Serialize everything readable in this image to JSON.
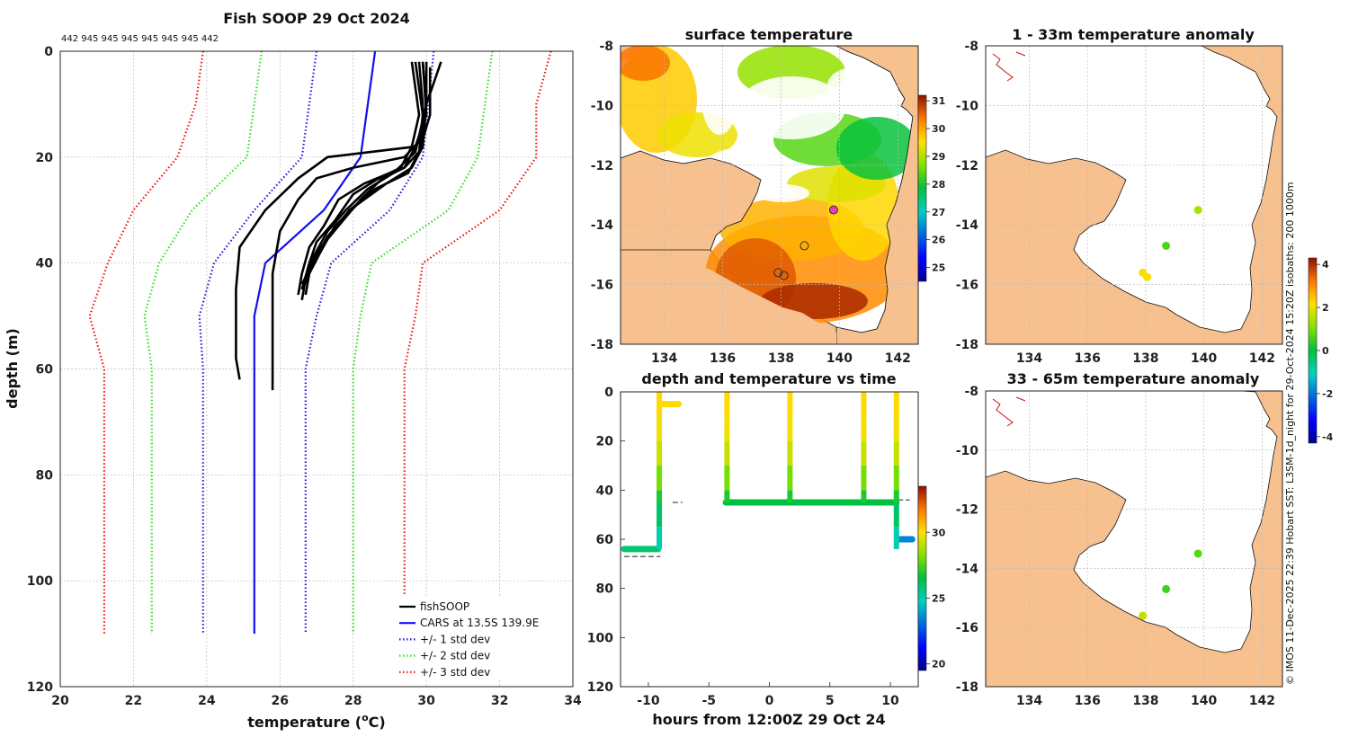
{
  "profile_panel": {
    "title": "Fish SOOP 29 Oct 2024",
    "counts_label": "442 945 945 945 945 945 945 442",
    "xlabel_main": "temperature (",
    "xlabel_sup": "o",
    "xlabel_tail": "C)",
    "ylabel": "depth (m)"
  },
  "map_panels": {
    "sst_title": "surface temperature",
    "anom1_title": "1 - 33m temperature anomaly",
    "anom2_title": "33 - 65m temperature anomaly",
    "lon_ticks": [
      "134",
      "136",
      "138",
      "140",
      "142"
    ],
    "lat_ticks": [
      "-8",
      "-10",
      "-12",
      "-14",
      "-16",
      "-18"
    ],
    "sst_colorbar_ticks": [
      "31",
      "30",
      "29",
      "28",
      "27",
      "26",
      "25"
    ],
    "anom_colorbar_ticks": [
      "4",
      "2",
      "0",
      "-2",
      "-4"
    ]
  },
  "time_panel": {
    "title": "depth and temperature vs time",
    "xlabel": "hours from 12:00Z 29 Oct 24",
    "colorbar_ticks": [
      "30",
      "25",
      "20"
    ]
  },
  "credit": "© IMOS 11-Dec-2025 22:39 Hobart SST: L3SM-1d_night for 29-Oct-2024 15:20Z isobaths: 200  1000m",
  "colors": {
    "land": "#f7c08f",
    "fishsoop": "#000000",
    "cars": "#1010ee",
    "std1": "#1a1ae0",
    "std2": "#33dd22",
    "std3": "#ee1111"
  },
  "chart_data": [
    {
      "type": "line",
      "title": "Fish SOOP 29 Oct 2024",
      "xlabel": "temperature (oC)",
      "ylabel": "depth (m)",
      "xlim": [
        20,
        34
      ],
      "ylim": [
        120,
        0
      ],
      "x_ticks": [
        "20",
        "22",
        "24",
        "26",
        "28",
        "30",
        "32",
        "34"
      ],
      "y_ticks": [
        "0",
        "20",
        "40",
        "60",
        "80",
        "100",
        "120"
      ],
      "legend_position": "bottom-right",
      "legend": [
        "fishSOOP",
        "CARS at 13.5S 139.9E",
        "+/- 1 std dev",
        "+/- 2 std dev",
        "+/- 3 std dev"
      ],
      "series": [
        {
          "name": "CARS mean",
          "color": "cars",
          "style": "solid",
          "points": [
            [
              28.6,
              0
            ],
            [
              28.2,
              20
            ],
            [
              27.2,
              30
            ],
            [
              25.6,
              40
            ],
            [
              25.3,
              50
            ],
            [
              25.3,
              60
            ],
            [
              25.3,
              110
            ]
          ]
        },
        {
          "name": "-1 std",
          "color": "std1",
          "style": "dotted",
          "points": [
            [
              27.0,
              0
            ],
            [
              26.6,
              20
            ],
            [
              25.3,
              30
            ],
            [
              24.2,
              40
            ],
            [
              23.8,
              50
            ],
            [
              23.9,
              60
            ],
            [
              23.9,
              110
            ]
          ]
        },
        {
          "name": "+1 std",
          "color": "std1",
          "style": "dotted",
          "points": [
            [
              30.2,
              0
            ],
            [
              29.9,
              20
            ],
            [
              29.0,
              30
            ],
            [
              27.4,
              40
            ],
            [
              27.0,
              50
            ],
            [
              26.7,
              60
            ],
            [
              26.7,
              110
            ]
          ]
        },
        {
          "name": "-2 std",
          "color": "std2",
          "style": "dotted",
          "points": [
            [
              25.5,
              0
            ],
            [
              25.1,
              20
            ],
            [
              23.6,
              30
            ],
            [
              22.7,
              40
            ],
            [
              22.3,
              50
            ],
            [
              22.5,
              60
            ],
            [
              22.5,
              110
            ]
          ]
        },
        {
          "name": "+2 std",
          "color": "std2",
          "style": "dotted",
          "points": [
            [
              31.8,
              0
            ],
            [
              31.4,
              20
            ],
            [
              30.6,
              30
            ],
            [
              28.5,
              40
            ],
            [
              28.2,
              50
            ],
            [
              28.0,
              60
            ],
            [
              28.0,
              110
            ]
          ]
        },
        {
          "name": "-3 std",
          "color": "std3",
          "style": "dotted",
          "points": [
            [
              23.9,
              0
            ],
            [
              23.7,
              10
            ],
            [
              23.2,
              20
            ],
            [
              22.0,
              30
            ],
            [
              21.3,
              40
            ],
            [
              20.8,
              50
            ],
            [
              21.2,
              60
            ],
            [
              21.2,
              110
            ]
          ]
        },
        {
          "name": "+3 std",
          "color": "std3",
          "style": "dotted",
          "points": [
            [
              33.4,
              0
            ],
            [
              33.0,
              10
            ],
            [
              33.0,
              20
            ],
            [
              32.0,
              30
            ],
            [
              29.9,
              40
            ],
            [
              29.7,
              50
            ],
            [
              29.4,
              60
            ],
            [
              29.4,
              110
            ]
          ]
        },
        {
          "name": "fishSOOP cast 1",
          "color": "fishsoop",
          "style": "solid",
          "points": [
            [
              29.8,
              2
            ],
            [
              29.9,
              10
            ],
            [
              29.9,
              16
            ],
            [
              29.7,
              18
            ],
            [
              27.3,
              20
            ],
            [
              26.5,
              24
            ],
            [
              25.6,
              30
            ],
            [
              24.9,
              37
            ],
            [
              24.8,
              45
            ],
            [
              24.8,
              58
            ],
            [
              24.9,
              62
            ]
          ]
        },
        {
          "name": "fishSOOP cast 2",
          "color": "fishsoop",
          "style": "solid",
          "points": [
            [
              30.0,
              2
            ],
            [
              30.0,
              10
            ],
            [
              29.8,
              17
            ],
            [
              29.4,
              20
            ],
            [
              28.0,
              22
            ],
            [
              27.0,
              24
            ],
            [
              26.5,
              28
            ],
            [
              26.0,
              34
            ],
            [
              25.8,
              42
            ],
            [
              25.8,
              55
            ],
            [
              25.8,
              64
            ]
          ]
        },
        {
          "name": "fishSOOP cast 3",
          "color": "fishsoop",
          "style": "solid",
          "points": [
            [
              29.9,
              2
            ],
            [
              30.0,
              12
            ],
            [
              29.7,
              18
            ],
            [
              29.4,
              22
            ],
            [
              29.0,
              23
            ],
            [
              28.3,
              25
            ],
            [
              27.6,
              28
            ],
            [
              27.2,
              33
            ],
            [
              26.8,
              37
            ],
            [
              26.6,
              42
            ],
            [
              26.5,
              46
            ]
          ]
        },
        {
          "name": "fishSOOP cast 4",
          "color": "fishsoop",
          "style": "solid",
          "points": [
            [
              29.6,
              2
            ],
            [
              29.8,
              12
            ],
            [
              29.6,
              18
            ],
            [
              29.3,
              22
            ],
            [
              28.7,
              24
            ],
            [
              28.0,
              27
            ],
            [
              27.5,
              32
            ],
            [
              27.0,
              36
            ],
            [
              26.8,
              40
            ],
            [
              26.6,
              45
            ]
          ]
        },
        {
          "name": "fishSOOP cast 5",
          "color": "fishsoop",
          "style": "solid",
          "points": [
            [
              30.4,
              2
            ],
            [
              30.0,
              10
            ],
            [
              29.9,
              18
            ],
            [
              29.6,
              22
            ],
            [
              28.9,
              25
            ],
            [
              28.1,
              29
            ],
            [
              27.5,
              33
            ],
            [
              27.1,
              38
            ],
            [
              26.8,
              42
            ],
            [
              26.7,
              46
            ]
          ]
        },
        {
          "name": "fishSOOP cast 6",
          "color": "fishsoop",
          "style": "solid",
          "points": [
            [
              29.7,
              2
            ],
            [
              29.9,
              12
            ],
            [
              29.8,
              19
            ],
            [
              29.5,
              23
            ],
            [
              28.6,
              26
            ],
            [
              27.9,
              30
            ],
            [
              27.3,
              35
            ],
            [
              26.9,
              40
            ],
            [
              26.6,
              44
            ]
          ]
        },
        {
          "name": "fishSOOP cast 7",
          "color": "fishsoop",
          "style": "solid",
          "points": [
            [
              30.1,
              3
            ],
            [
              30.1,
              12
            ],
            [
              29.8,
              19
            ],
            [
              29.4,
              22
            ],
            [
              28.8,
              24
            ],
            [
              28.2,
              28
            ],
            [
              27.6,
              33
            ],
            [
              27.0,
              38
            ],
            [
              26.7,
              43
            ],
            [
              26.6,
              47
            ]
          ]
        },
        {
          "name": "fishSOOP cast 8",
          "color": "fishsoop",
          "style": "solid",
          "points": [
            [
              29.9,
              2
            ],
            [
              30.0,
              10
            ],
            [
              29.7,
              19
            ],
            [
              29.1,
              23
            ],
            [
              28.4,
              26
            ],
            [
              27.8,
              30
            ],
            [
              27.3,
              34
            ],
            [
              26.9,
              39
            ],
            [
              26.7,
              44
            ]
          ]
        }
      ]
    },
    {
      "type": "heatmap",
      "title": "surface temperature",
      "xlim": [
        132.5,
        142.7
      ],
      "ylim": [
        -18,
        -8
      ],
      "colorbar_range": [
        24.5,
        31.2
      ],
      "fishsoop_positions": [
        [
          139.8,
          -13.5
        ],
        [
          138.8,
          -14.7
        ],
        [
          137.9,
          -15.6
        ],
        [
          138.1,
          -15.7
        ]
      ]
    },
    {
      "type": "scatter",
      "title": "depth and temperature vs time",
      "xlabel": "hours from 12:00Z 29 Oct 24",
      "xlim": [
        -12.3,
        12.3
      ],
      "ylim": [
        120,
        0
      ],
      "x_ticks": [
        "-10",
        "-5",
        "0",
        "5",
        "10"
      ],
      "y_ticks": [
        "0",
        "20",
        "40",
        "60",
        "80",
        "100",
        "120"
      ],
      "colorbar_range": [
        19.5,
        33.5
      ],
      "segments": [
        {
          "t0": -12.0,
          "t1": -9.2,
          "depth": 64,
          "temp": 25.8
        },
        {
          "t0": -9.2,
          "t1": -9.0,
          "depth_from": 64,
          "depth_to": 0,
          "temp_top": 29.9,
          "temp_bottom": 25.8
        },
        {
          "t0": -8.8,
          "t1": -7.5,
          "depth": 5,
          "temp": 30.1
        },
        {
          "t0": -3.6,
          "t1": 10.5,
          "depth": 45,
          "temp": 26.5
        },
        {
          "t0": 10.6,
          "t1": 11.8,
          "depth": 60,
          "temp": 23.5
        }
      ],
      "profiles_at_hours": [
        -9.1,
        -3.5,
        1.7,
        7.8,
        10.5
      ],
      "bottom_markers": [
        [
          -12.0,
          -9.0,
          67
        ],
        [
          -8.0,
          -7.2,
          45
        ],
        [
          -3.6,
          10.4,
          45
        ],
        [
          10.6,
          11.6,
          44
        ],
        [
          10.6,
          11.6,
          60
        ]
      ]
    },
    {
      "type": "scatter",
      "title": "1 - 33m temperature anomaly",
      "xlim": [
        132.5,
        142.7
      ],
      "ylim": [
        -18,
        -8
      ],
      "colorbar_range": [
        -4.3,
        4.3
      ],
      "points": [
        {
          "lon": 139.8,
          "lat": -13.5,
          "anom": 1.4
        },
        {
          "lon": 138.7,
          "lat": -14.7,
          "anom": 0.6
        },
        {
          "lon": 137.9,
          "lat": -15.6,
          "anom": 2.1
        },
        {
          "lon": 138.05,
          "lat": -15.75,
          "anom": 2.2
        }
      ]
    },
    {
      "type": "scatter",
      "title": "33 - 65m temperature anomaly",
      "xlim": [
        132.5,
        142.7
      ],
      "ylim": [
        -18,
        -8
      ],
      "colorbar_range": [
        -4.3,
        4.3
      ],
      "points": [
        {
          "lon": 139.8,
          "lat": -13.5,
          "anom": 0.7
        },
        {
          "lon": 138.7,
          "lat": -14.7,
          "anom": 0.5
        },
        {
          "lon": 137.9,
          "lat": -15.6,
          "anom": 1.6
        }
      ]
    }
  ]
}
